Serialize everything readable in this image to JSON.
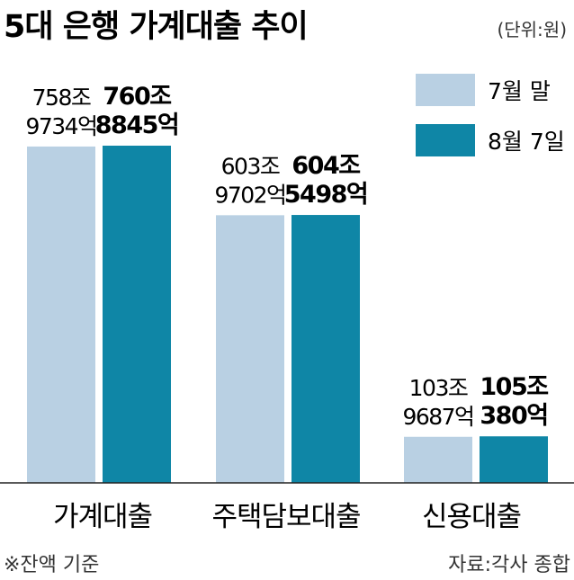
{
  "title": "5대 은행 가계대출 추이",
  "unit": "(단위:원)",
  "footnote": "※잔액 기준",
  "source": "자료:각사 종합",
  "colors": {
    "series1": "#b9d0e3",
    "series2": "#0f86a6"
  },
  "chart_data": {
    "type": "bar",
    "categories": [
      "가계대출",
      "주택담보대출",
      "신용대출"
    ],
    "series": [
      {
        "name": "7월 말",
        "values": [
          7589734,
          6039702,
          1039687
        ],
        "labels": [
          [
            "758조",
            "9734억"
          ],
          [
            "603조",
            "9702억"
          ],
          [
            "103조",
            "9687억"
          ]
        ]
      },
      {
        "name": "8월 7일",
        "values": [
          7608845,
          6045498,
          1050380
        ],
        "labels": [
          [
            "760조",
            "8845억"
          ],
          [
            "604조",
            "5498억"
          ],
          [
            "105조",
            "380억"
          ]
        ]
      }
    ],
    "value_unit": "억원",
    "legend": "top-right",
    "grid": false
  }
}
